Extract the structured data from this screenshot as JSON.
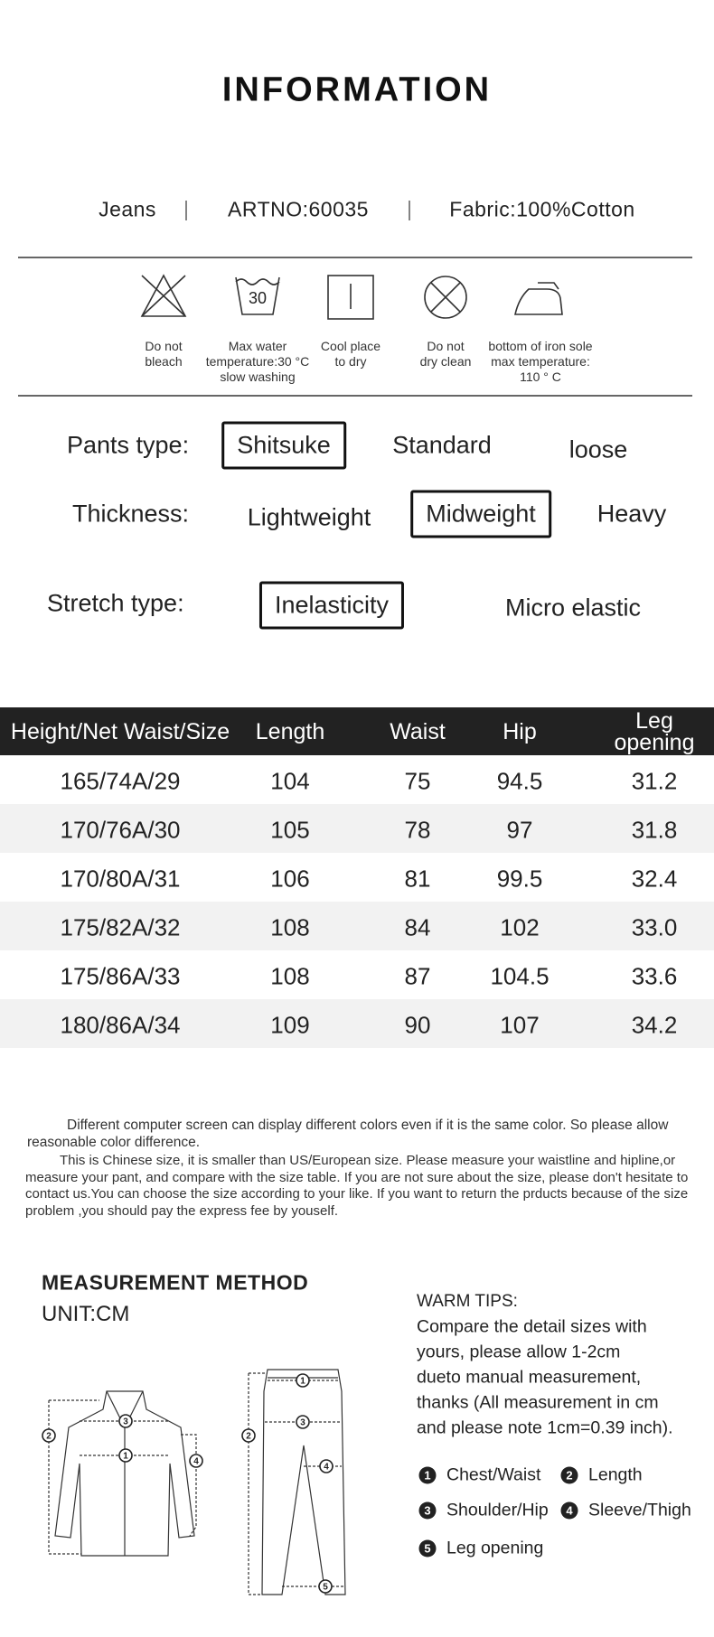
{
  "title": "INFORMATION",
  "specs": [
    "Jeans",
    "ARTNO:60035",
    "Fabric:100%Cotton"
  ],
  "care": [
    {
      "lines": [
        "Do not",
        "bleach"
      ]
    },
    {
      "icon_text": "30",
      "lines": [
        "Max water",
        "temperature:30 °C",
        "slow washing"
      ]
    },
    {
      "lines": [
        "Cool place",
        "to dry"
      ]
    },
    {
      "lines": [
        "Do not",
        "dry clean"
      ]
    },
    {
      "lines": [
        "bottom of iron sole",
        "max temperature:",
        "110 ° C"
      ]
    }
  ],
  "attributes": [
    {
      "label": "Pants type:",
      "options": [
        "Shitsuke",
        "Standard",
        "loose"
      ],
      "selected": 0
    },
    {
      "label": "Thickness:",
      "options": [
        "Lightweight",
        "Midweight",
        "Heavy"
      ],
      "selected": 1
    },
    {
      "label": "Stretch type:",
      "options": [
        "Inelasticity",
        "Micro elastic"
      ],
      "selected": 0
    }
  ],
  "table": {
    "columns": [
      "Height/Net Waist/Size",
      "Length",
      "Waist",
      "Hip",
      "Leg opening"
    ],
    "rows": [
      [
        "165/74A/29",
        "104",
        "75",
        "94.5",
        "31.2"
      ],
      [
        "170/76A/30",
        "105",
        "78",
        "97",
        "31.8"
      ],
      [
        "170/80A/31",
        "106",
        "81",
        "99.5",
        "32.4"
      ],
      [
        "175/82A/32",
        "108",
        "84",
        "102",
        "33.0"
      ],
      [
        "175/86A/33",
        "108",
        "87",
        "104.5",
        "33.6"
      ],
      [
        "180/86A/34",
        "109",
        "90",
        "107",
        "34.2"
      ]
    ]
  },
  "notes": [
    "Different computer screen can display different colors even if it is the same color. So please allow reasonable color difference.",
    "This is Chinese size, it is smaller than US/European size. Please measure your waistline and hipline,or measure your pant, and compare with the size table. If you are not sure about the size, please don't hesitate to contact us.You can choose the size according to your like. If you want to return the prducts because of the size problem ,you should pay the express fee by youself."
  ],
  "measurement": {
    "title": "MEASUREMENT METHOD",
    "unit": "UNIT:CM",
    "tips_title": "WARM TIPS:",
    "tips": [
      "Compare the detail sizes with",
      "yours, please allow 1-2cm",
      "dueto manual measurement,",
      "thanks (All measurement in cm",
      "and please note 1cm=0.39 inch)."
    ],
    "legend": [
      {
        "num": "1",
        "label": "Chest/Waist"
      },
      {
        "num": "2",
        "label": "Length"
      },
      {
        "num": "3",
        "label": "Shoulder/Hip"
      },
      {
        "num": "4",
        "label": "Sleeve/Thigh"
      },
      {
        "num": "5",
        "label": "Leg opening"
      }
    ]
  }
}
